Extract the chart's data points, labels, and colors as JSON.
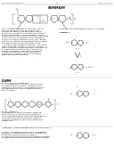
{
  "bg_color": "#ffffff",
  "text_color": "#111111",
  "header_left": "US 2013/0118546 A1",
  "header_right": "May 1, 2013",
  "header_center": "17",
  "title_text": "SUMMARY",
  "line_color": "#444444",
  "lw": 0.3
}
